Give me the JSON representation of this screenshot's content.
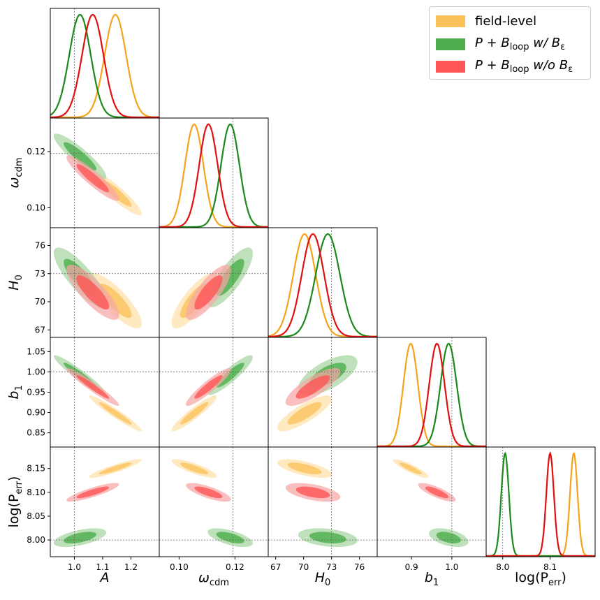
{
  "chart_data": {
    "type": "corner",
    "parameters": [
      {
        "name": "A",
        "label_main": "A",
        "label_sub": "",
        "truth": 1.0,
        "range": [
          0.915,
          1.3
        ],
        "ticks": [
          1.0,
          1.1,
          1.2
        ],
        "tick_labels": [
          "1.0",
          "1.1",
          "1.2"
        ]
      },
      {
        "name": "omega_cdm",
        "label_main": "ω",
        "label_sub": "cdm",
        "truth": 0.1193,
        "range": [
          0.0929,
          0.1319
        ],
        "ticks": [
          0.1,
          0.12
        ],
        "tick_labels": [
          "0.10",
          "0.12"
        ]
      },
      {
        "name": "H0",
        "label_main": "H",
        "label_sub": "0",
        "truth": 73.0,
        "range": [
          66.2,
          77.9
        ],
        "ticks": [
          67,
          70,
          73,
          76
        ],
        "tick_labels": [
          "67",
          "70",
          "73",
          "76"
        ]
      },
      {
        "name": "b1",
        "label_main": "b",
        "label_sub": "1",
        "truth": 1.0,
        "range": [
          0.815,
          1.085
        ],
        "ticks": [
          0.85,
          0.9,
          0.95,
          1.0,
          1.05
        ],
        "tick_labels": [
          "0.85",
          "0.90",
          "0.95",
          "1.00",
          "1.05"
        ],
        "x_ticks": [
          0.9,
          1.0
        ],
        "x_tick_labels": [
          "0.9",
          "1.0"
        ]
      },
      {
        "name": "log_Perr",
        "label_main": "log(P",
        "label_sub": "err",
        "label_tail": ")",
        "truth": 8.0,
        "range": [
          7.965,
          8.195
        ],
        "ticks": [
          8.0,
          8.05,
          8.1,
          8.15
        ],
        "tick_labels": [
          "8.00",
          "8.05",
          "8.10",
          "8.15"
        ],
        "x_ticks": [
          8.0,
          8.1
        ],
        "x_tick_labels": [
          "8.0",
          "8.1"
        ]
      }
    ],
    "series": [
      {
        "name": "field-level",
        "color": "#f5a31a",
        "fill_inner": "#fbc25c",
        "fill_outer": "#fde0a8",
        "means": [
          1.145,
          0.1054,
          70.1,
          0.898,
          8.15
        ],
        "sigmas": [
          0.038,
          0.0033,
          1.2,
          0.018,
          0.008
        ],
        "corr": [
          [
            1,
            -0.92,
            -0.82,
            -0.96,
            0.9
          ],
          [
            -0.92,
            1,
            0.8,
            0.93,
            -0.82
          ],
          [
            -0.82,
            0.8,
            1,
            0.82,
            -0.65
          ],
          [
            -0.96,
            0.93,
            0.82,
            1,
            -0.88
          ],
          [
            0.9,
            -0.82,
            -0.65,
            -0.88,
            1
          ]
        ]
      },
      {
        "name": "P + B_loop w/ B_ε",
        "color": "#1a8a1a",
        "fill_inner": "#4cae4c",
        "fill_outer": "#a5d4a0",
        "means": [
          1.02,
          0.1183,
          72.6,
          0.992,
          8.005
        ],
        "sigmas": [
          0.038,
          0.0033,
          1.3,
          0.02,
          0.008
        ],
        "corr": [
          [
            1,
            -0.9,
            -0.82,
            -0.95,
            0.55
          ],
          [
            -0.9,
            1,
            0.8,
            0.9,
            -0.6
          ],
          [
            -0.82,
            0.8,
            1,
            0.65,
            -0.3
          ],
          [
            -0.95,
            0.9,
            0.65,
            1,
            -0.45
          ],
          [
            0.55,
            -0.6,
            -0.3,
            -0.45,
            1
          ]
        ]
      },
      {
        "name": "P + B_loop w/o B_ε",
        "color": "#e01010",
        "fill_inner": "#ff5555",
        "fill_outer": "#f7a6a6",
        "means": [
          1.065,
          0.1105,
          71.0,
          0.963,
          8.1
        ],
        "sigmas": [
          0.038,
          0.0033,
          1.2,
          0.019,
          0.008
        ],
        "corr": [
          [
            1,
            -0.92,
            -0.82,
            -0.96,
            0.85
          ],
          [
            -0.92,
            1,
            0.8,
            0.92,
            -0.75
          ],
          [
            -0.82,
            0.8,
            1,
            0.8,
            -0.5
          ],
          [
            -0.96,
            0.92,
            0.8,
            1,
            -0.8
          ],
          [
            0.85,
            -0.75,
            -0.5,
            -0.8,
            1
          ]
        ]
      }
    ],
    "contour_levels": [
      "68%",
      "95%"
    ],
    "legend": {
      "placement": "top-right"
    }
  },
  "legend": {
    "items": [
      {
        "main": "field-level",
        "sub": "",
        "tail": ""
      },
      {
        "main": "P + B",
        "sub": "loop",
        "tail": " w/ B",
        "tail_sub": "ε"
      },
      {
        "main": "P + B",
        "sub": "loop",
        "tail": " w/o B",
        "tail_sub": "ε"
      }
    ]
  }
}
